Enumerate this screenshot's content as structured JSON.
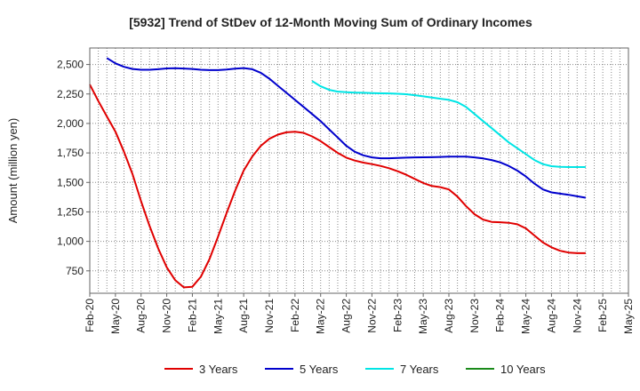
{
  "chart_data": {
    "type": "line",
    "title": "[5932]  Trend of StDev of 12-Month Moving Sum of Ordinary Incomes",
    "ylabel": "Amount (million yen)",
    "xlabel": "",
    "ylim": [
      560,
      2640
    ],
    "yticks": [
      750,
      1000,
      1250,
      1500,
      1750,
      2000,
      2250,
      2500
    ],
    "ytick_labels": [
      "750",
      "1,000",
      "1,250",
      "1,500",
      "1,750",
      "2,000",
      "2,250",
      "2,500"
    ],
    "x_range": [
      0,
      63
    ],
    "xtick_labels": [
      "Feb-20",
      "May-20",
      "Aug-20",
      "Nov-20",
      "Feb-21",
      "May-21",
      "Aug-21",
      "Nov-21",
      "Feb-22",
      "May-22",
      "Aug-22",
      "Nov-22",
      "Feb-23",
      "May-23",
      "Aug-23",
      "Nov-23",
      "Feb-24",
      "May-24",
      "Aug-24",
      "Nov-24",
      "Feb-25",
      "May-25"
    ],
    "grid": true,
    "legend_position": "bottom",
    "series": [
      {
        "name": "3 Years",
        "color": "#e00000",
        "points": [
          [
            0,
            2330
          ],
          [
            1,
            2190
          ],
          [
            2,
            2060
          ],
          [
            3,
            1930
          ],
          [
            4,
            1760
          ],
          [
            5,
            1570
          ],
          [
            6,
            1340
          ],
          [
            7,
            1130
          ],
          [
            8,
            940
          ],
          [
            9,
            780
          ],
          [
            10,
            670
          ],
          [
            11,
            610
          ],
          [
            12,
            615
          ],
          [
            13,
            700
          ],
          [
            14,
            850
          ],
          [
            15,
            1040
          ],
          [
            16,
            1240
          ],
          [
            17,
            1430
          ],
          [
            18,
            1600
          ],
          [
            19,
            1720
          ],
          [
            20,
            1810
          ],
          [
            21,
            1870
          ],
          [
            22,
            1905
          ],
          [
            23,
            1925
          ],
          [
            24,
            1930
          ],
          [
            25,
            1920
          ],
          [
            26,
            1890
          ],
          [
            27,
            1850
          ],
          [
            28,
            1800
          ],
          [
            29,
            1750
          ],
          [
            30,
            1710
          ],
          [
            31,
            1685
          ],
          [
            32,
            1668
          ],
          [
            33,
            1655
          ],
          [
            34,
            1640
          ],
          [
            35,
            1620
          ],
          [
            36,
            1595
          ],
          [
            37,
            1565
          ],
          [
            38,
            1530
          ],
          [
            39,
            1495
          ],
          [
            40,
            1470
          ],
          [
            41,
            1460
          ],
          [
            42,
            1440
          ],
          [
            43,
            1380
          ],
          [
            44,
            1300
          ],
          [
            45,
            1230
          ],
          [
            46,
            1185
          ],
          [
            47,
            1165
          ],
          [
            48,
            1162
          ],
          [
            49,
            1158
          ],
          [
            50,
            1145
          ],
          [
            51,
            1110
          ],
          [
            52,
            1050
          ],
          [
            53,
            990
          ],
          [
            54,
            950
          ],
          [
            55,
            920
          ],
          [
            56,
            905
          ],
          [
            57,
            900
          ],
          [
            58,
            900
          ]
        ]
      },
      {
        "name": "5 Years",
        "color": "#0000cc",
        "points": [
          [
            2,
            2555
          ],
          [
            3,
            2510
          ],
          [
            4,
            2480
          ],
          [
            5,
            2462
          ],
          [
            6,
            2455
          ],
          [
            7,
            2455
          ],
          [
            8,
            2460
          ],
          [
            9,
            2467
          ],
          [
            10,
            2468
          ],
          [
            11,
            2466
          ],
          [
            12,
            2462
          ],
          [
            13,
            2455
          ],
          [
            14,
            2452
          ],
          [
            15,
            2452
          ],
          [
            16,
            2458
          ],
          [
            17,
            2465
          ],
          [
            18,
            2470
          ],
          [
            19,
            2460
          ],
          [
            20,
            2430
          ],
          [
            21,
            2380
          ],
          [
            22,
            2320
          ],
          [
            23,
            2260
          ],
          [
            24,
            2200
          ],
          [
            25,
            2140
          ],
          [
            26,
            2080
          ],
          [
            27,
            2020
          ],
          [
            28,
            1950
          ],
          [
            29,
            1880
          ],
          [
            30,
            1810
          ],
          [
            31,
            1760
          ],
          [
            32,
            1730
          ],
          [
            33,
            1712
          ],
          [
            34,
            1705
          ],
          [
            35,
            1705
          ],
          [
            36,
            1708
          ],
          [
            37,
            1710
          ],
          [
            38,
            1712
          ],
          [
            39,
            1713
          ],
          [
            40,
            1714
          ],
          [
            41,
            1716
          ],
          [
            42,
            1718
          ],
          [
            43,
            1719
          ],
          [
            44,
            1718
          ],
          [
            45,
            1712
          ],
          [
            46,
            1703
          ],
          [
            47,
            1690
          ],
          [
            48,
            1670
          ],
          [
            49,
            1640
          ],
          [
            50,
            1600
          ],
          [
            51,
            1550
          ],
          [
            52,
            1490
          ],
          [
            53,
            1440
          ],
          [
            54,
            1415
          ],
          [
            55,
            1405
          ],
          [
            56,
            1395
          ],
          [
            57,
            1382
          ],
          [
            58,
            1370
          ]
        ]
      },
      {
        "name": "7 Years",
        "color": "#00e5e5",
        "points": [
          [
            26,
            2360
          ],
          [
            27,
            2315
          ],
          [
            28,
            2285
          ],
          [
            29,
            2270
          ],
          [
            30,
            2265
          ],
          [
            31,
            2262
          ],
          [
            32,
            2260
          ],
          [
            33,
            2258
          ],
          [
            34,
            2256
          ],
          [
            35,
            2255
          ],
          [
            36,
            2252
          ],
          [
            37,
            2248
          ],
          [
            38,
            2240
          ],
          [
            39,
            2230
          ],
          [
            40,
            2220
          ],
          [
            41,
            2210
          ],
          [
            42,
            2200
          ],
          [
            43,
            2180
          ],
          [
            44,
            2140
          ],
          [
            45,
            2080
          ],
          [
            46,
            2020
          ],
          [
            47,
            1960
          ],
          [
            48,
            1900
          ],
          [
            49,
            1840
          ],
          [
            50,
            1790
          ],
          [
            51,
            1740
          ],
          [
            52,
            1690
          ],
          [
            53,
            1655
          ],
          [
            54,
            1638
          ],
          [
            55,
            1632
          ],
          [
            56,
            1630
          ],
          [
            57,
            1630
          ],
          [
            58,
            1630
          ]
        ]
      },
      {
        "name": "10 Years",
        "color": "#1a8a1a",
        "points": []
      }
    ]
  }
}
